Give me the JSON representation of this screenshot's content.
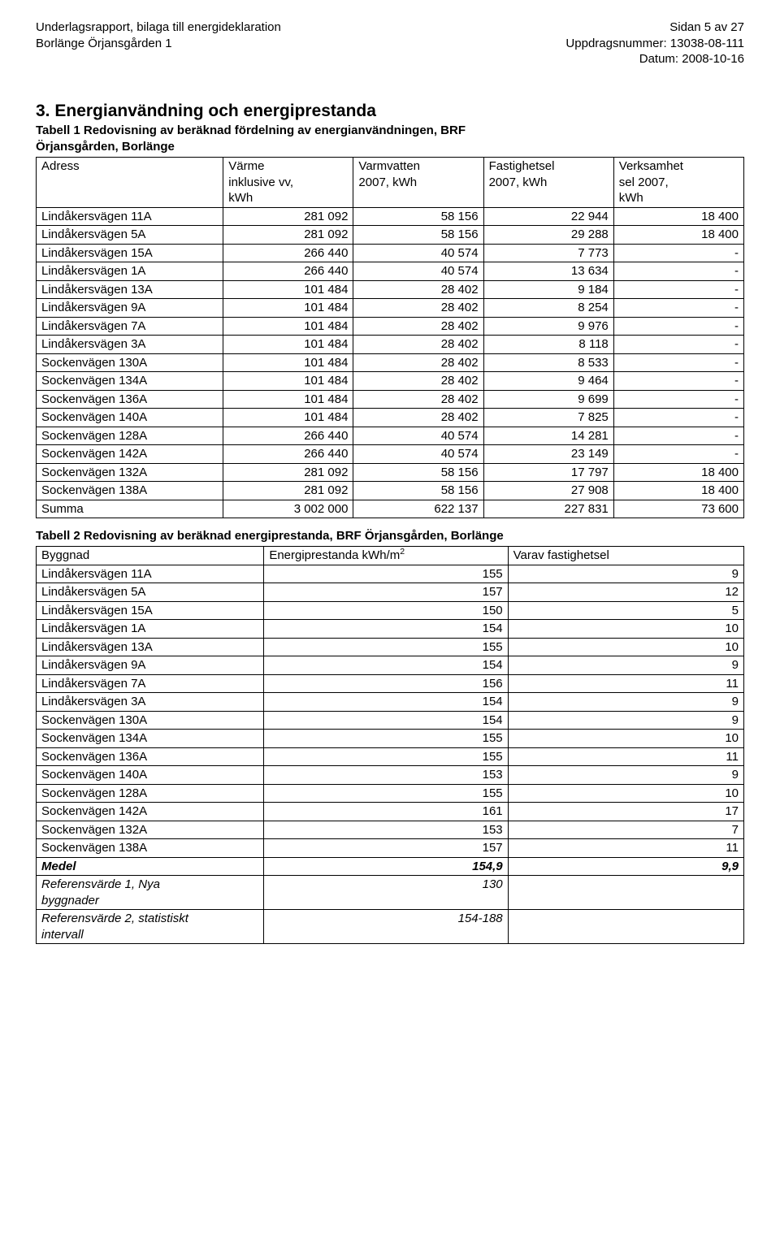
{
  "header": {
    "left_line1": "Underlagsrapport, bilaga till energideklaration",
    "left_line2": "Borlänge Örjansgården 1",
    "right_line1": "Sidan 5 av 27",
    "right_line2": "Uppdragsnummer: 13038-08-111",
    "right_line3": "Datum: 2008-10-16"
  },
  "section_number": "3.",
  "section_title": "Energianvändning och energiprestanda",
  "table1": {
    "caption_line1": "Tabell 1 Redovisning av beräknad fördelning av energianvändningen, BRF",
    "caption_line2": "Örjansgården, Borlänge",
    "columns": [
      "Adress",
      "Värme\ninklusive vv,\nkWh",
      "Varmvatten\n2007, kWh",
      "Fastighetsel\n2007, kWh",
      "Verksamhet\nsel 2007,\nkWh"
    ],
    "col_align": [
      "left",
      "right",
      "right",
      "right",
      "right"
    ],
    "rows": [
      [
        "Lindåkersvägen 11A",
        "281 092",
        "58 156",
        "22 944",
        "18 400"
      ],
      [
        "Lindåkersvägen 5A",
        "281 092",
        "58 156",
        "29 288",
        "18 400"
      ],
      [
        "Lindåkersvägen 15A",
        "266 440",
        "40 574",
        "7 773",
        "-"
      ],
      [
        "Lindåkersvägen 1A",
        "266 440",
        "40 574",
        "13 634",
        "-"
      ],
      [
        "Lindåkersvägen 13A",
        "101 484",
        "28 402",
        "9 184",
        "-"
      ],
      [
        "Lindåkersvägen 9A",
        "101 484",
        "28 402",
        "8 254",
        "-"
      ],
      [
        "Lindåkersvägen 7A",
        "101 484",
        "28 402",
        "9 976",
        "-"
      ],
      [
        "Lindåkersvägen 3A",
        "101 484",
        "28 402",
        "8 118",
        "-"
      ],
      [
        "Sockenvägen 130A",
        "101 484",
        "28 402",
        "8 533",
        "-"
      ],
      [
        "Sockenvägen 134A",
        "101 484",
        "28 402",
        "9 464",
        "-"
      ],
      [
        "Sockenvägen 136A",
        "101 484",
        "28 402",
        "9 699",
        "-"
      ],
      [
        "Sockenvägen 140A",
        "101 484",
        "28 402",
        "7 825",
        "-"
      ],
      [
        "Sockenvägen 128A",
        "266 440",
        "40 574",
        "14 281",
        "-"
      ],
      [
        "Sockenvägen 142A",
        "266 440",
        "40 574",
        "23 149",
        "-"
      ],
      [
        "Sockenvägen 132A",
        "281 092",
        "58 156",
        "17 797",
        "18 400"
      ],
      [
        "Sockenvägen 138A",
        "281 092",
        "58 156",
        "27 908",
        "18 400"
      ]
    ],
    "summary": [
      "Summa",
      "3 002 000",
      "622 137",
      "227 831",
      "73 600"
    ]
  },
  "table2": {
    "caption": "Tabell 2 Redovisning av beräknad energiprestanda, BRF Örjansgården, Borlänge",
    "columns": [
      "Byggnad",
      "Energiprestanda kWh/m",
      "Varav fastighetsel"
    ],
    "sup": "2",
    "col_align": [
      "left",
      "right",
      "right"
    ],
    "rows": [
      {
        "cells": [
          "Lindåkersvägen 11A",
          "155",
          "9"
        ],
        "style": ""
      },
      {
        "cells": [
          "Lindåkersvägen 5A",
          "157",
          "12"
        ],
        "style": ""
      },
      {
        "cells": [
          "Lindåkersvägen 15A",
          "150",
          "5"
        ],
        "style": ""
      },
      {
        "cells": [
          "Lindåkersvägen 1A",
          "154",
          "10"
        ],
        "style": ""
      },
      {
        "cells": [
          "Lindåkersvägen 13A",
          "155",
          "10"
        ],
        "style": ""
      },
      {
        "cells": [
          "Lindåkersvägen 9A",
          "154",
          "9"
        ],
        "style": ""
      },
      {
        "cells": [
          "Lindåkersvägen 7A",
          "156",
          "11"
        ],
        "style": ""
      },
      {
        "cells": [
          "Lindåkersvägen 3A",
          "154",
          "9"
        ],
        "style": ""
      },
      {
        "cells": [
          "Sockenvägen 130A",
          "154",
          "9"
        ],
        "style": ""
      },
      {
        "cells": [
          "Sockenvägen 134A",
          "155",
          "10"
        ],
        "style": ""
      },
      {
        "cells": [
          "Sockenvägen 136A",
          "155",
          "11"
        ],
        "style": ""
      },
      {
        "cells": [
          "Sockenvägen 140A",
          "153",
          "9"
        ],
        "style": ""
      },
      {
        "cells": [
          "Sockenvägen 128A",
          "155",
          "10"
        ],
        "style": ""
      },
      {
        "cells": [
          "Sockenvägen 142A",
          "161",
          "17"
        ],
        "style": ""
      },
      {
        "cells": [
          "Sockenvägen 132A",
          "153",
          "7"
        ],
        "style": ""
      },
      {
        "cells": [
          "Sockenvägen 138A",
          "157",
          "11"
        ],
        "style": ""
      },
      {
        "cells": [
          "Medel",
          "154,9",
          "9,9"
        ],
        "style": "bolditalic"
      },
      {
        "cells": [
          "Referensvärde 1, Nya\nbyggnader",
          "130",
          ""
        ],
        "style": "italic"
      },
      {
        "cells": [
          "Referensvärde 2, statistiskt\nintervall",
          "154-188",
          ""
        ],
        "style": "italic"
      }
    ]
  },
  "style": {
    "text_color": "#000000",
    "border_color": "#000000",
    "background_color": "#ffffff",
    "body_fontsize": 15,
    "header_fontsize": 15,
    "section_title_fontsize": 21
  }
}
